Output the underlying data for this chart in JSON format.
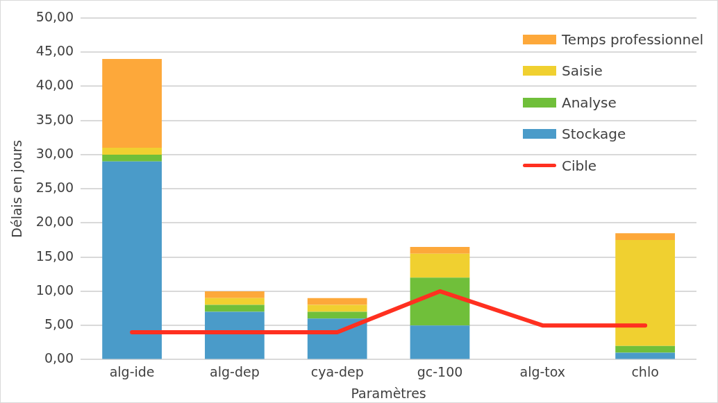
{
  "chart_data": {
    "type": "bar",
    "stacked": true,
    "xlabel": "Paramètres",
    "ylabel": "Délais en jours",
    "categories": [
      "alg-ide",
      "alg-dep",
      "cya-dep",
      "gc-100",
      "alg-tox",
      "chlo"
    ],
    "series": [
      {
        "name": "Stockage",
        "color": "#4a9bc9",
        "values": [
          29,
          7,
          6,
          5,
          null,
          1
        ]
      },
      {
        "name": "Analyse",
        "color": "#70bf3a",
        "values": [
          1,
          1,
          1,
          7,
          null,
          1
        ]
      },
      {
        "name": "Saisie",
        "color": "#f0d030",
        "values": [
          1,
          1,
          1,
          3.5,
          null,
          15.5
        ]
      },
      {
        "name": "Temps professionnel",
        "color": "#fda83a",
        "values": [
          13,
          1,
          1,
          1,
          null,
          1
        ]
      },
      {
        "name": "Cible",
        "type": "line",
        "color": "#ff3020",
        "values": [
          4,
          4,
          4,
          10,
          5,
          5
        ],
        "marker": "none"
      }
    ],
    "ylim": [
      0,
      50
    ],
    "yticks": [
      {
        "value": 0,
        "label": "0,00"
      },
      {
        "value": 5,
        "label": "5,00"
      },
      {
        "value": 10,
        "label": "10,00"
      },
      {
        "value": 15,
        "label": "15,00"
      },
      {
        "value": 20,
        "label": "20,00"
      },
      {
        "value": 25,
        "label": "25,00"
      },
      {
        "value": 30,
        "label": "30,00"
      },
      {
        "value": 35,
        "label": "35,00"
      },
      {
        "value": 40,
        "label": "40,00"
      },
      {
        "value": 45,
        "label": "45,00"
      },
      {
        "value": 50,
        "label": "50,00"
      }
    ],
    "grid": "y",
    "legend": "top right"
  }
}
